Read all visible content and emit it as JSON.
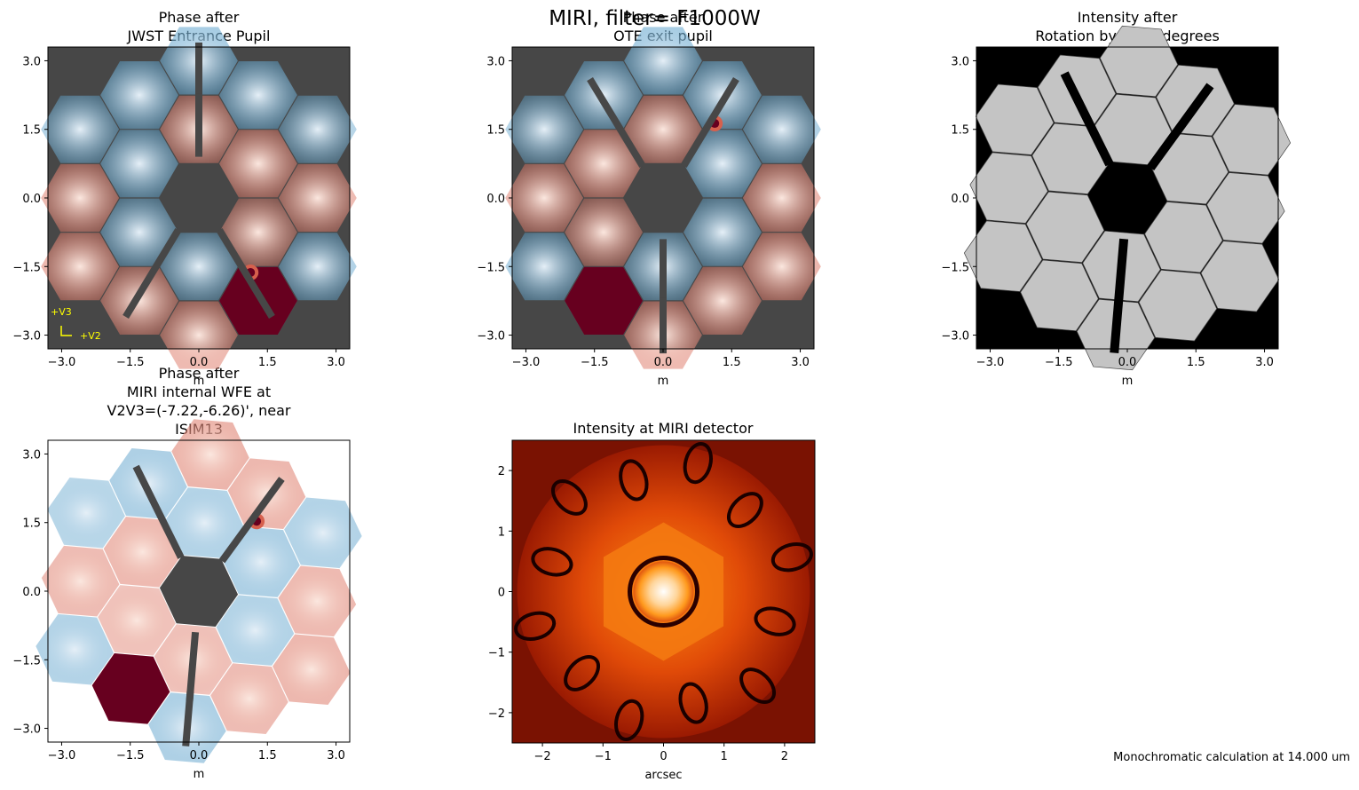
{
  "suptitle": "MIRI, filter= F1000W",
  "footnote": "Monochromatic calculation at 14.000 um",
  "colors": {
    "background_pupil": "#474747",
    "phase_negative": "#2166ac",
    "phase_positive": "#b2182b",
    "segment_gray": "#c4c4c4",
    "psf_colormap": "gist_heat",
    "axes_marker": "#ffff00"
  },
  "panels": [
    {
      "id": "p1",
      "title_lines": [
        "Phase after",
        "JWST Entrance Pupil"
      ],
      "xlabel": "m",
      "ticks": [
        "−3.0",
        "−1.5",
        "0.0",
        "1.5",
        "3.0"
      ],
      "annotations": [
        "+V3",
        "+V2"
      ]
    },
    {
      "id": "p2",
      "title_lines": [
        "Phase after",
        "OTE exit pupil"
      ],
      "xlabel": "m",
      "ticks": [
        "−3.0",
        "−1.5",
        "0.0",
        "1.5",
        "3.0"
      ]
    },
    {
      "id": "p3",
      "title_lines": [
        "Intensity after",
        "Rotation by -4.84 degrees"
      ],
      "xlabel": "m",
      "ticks": [
        "−3.0",
        "−1.5",
        "0.0",
        "1.5",
        "3.0"
      ]
    },
    {
      "id": "p4",
      "title_lines": [
        "Phase after",
        "MIRI internal WFE at",
        "V2V3=(-7.22,-6.26)', near",
        "ISIM13"
      ],
      "xlabel": "m",
      "ticks": [
        "−3.0",
        "−1.5",
        "0.0",
        "1.5",
        "3.0"
      ]
    },
    {
      "id": "p5",
      "title_lines": [
        "Intensity at MIRI detector"
      ],
      "xlabel": "arcsec",
      "ticks": [
        "−2",
        "−1",
        "0",
        "1",
        "2"
      ]
    }
  ],
  "chart_data": [
    {
      "type": "heatmap",
      "title": "Phase after JWST Entrance Pupil",
      "xlabel": "m",
      "ylabel": "",
      "xlim": [
        -3.3,
        3.3
      ],
      "ylim": [
        -3.3,
        3.3
      ],
      "ticks": [
        -3.0,
        -1.5,
        0.0,
        1.5,
        3.0
      ],
      "annotations": [
        "+V3",
        "+V2"
      ],
      "rotation_deg": 0
    },
    {
      "type": "heatmap",
      "title": "Phase after OTE exit pupil",
      "xlabel": "m",
      "xlim": [
        -3.3,
        3.3
      ],
      "ylim": [
        -3.3,
        3.3
      ],
      "ticks": [
        -3.0,
        -1.5,
        0.0,
        1.5,
        3.0
      ],
      "flipped": true
    },
    {
      "type": "heatmap",
      "title": "Intensity after Rotation by -4.84 degrees",
      "xlabel": "m",
      "xlim": [
        -3.3,
        3.3
      ],
      "ylim": [
        -3.3,
        3.3
      ],
      "ticks": [
        -3.0,
        -1.5,
        0.0,
        1.5,
        3.0
      ],
      "rotation_deg": -4.84
    },
    {
      "type": "heatmap",
      "title": "Phase after MIRI internal WFE at V2V3=(-7.22,-6.26)', near ISIM13",
      "xlabel": "m",
      "xlim": [
        -3.3,
        3.3
      ],
      "ylim": [
        -3.3,
        3.3
      ],
      "ticks": [
        -3.0,
        -1.5,
        0.0,
        1.5,
        3.0
      ],
      "rotation_deg": -4.84
    },
    {
      "type": "heatmap",
      "title": "Intensity at MIRI detector",
      "xlabel": "arcsec",
      "xlim": [
        -2.5,
        2.5
      ],
      "ylim": [
        -2.5,
        2.5
      ],
      "ticks": [
        -2,
        -1,
        0,
        1,
        2
      ]
    }
  ]
}
